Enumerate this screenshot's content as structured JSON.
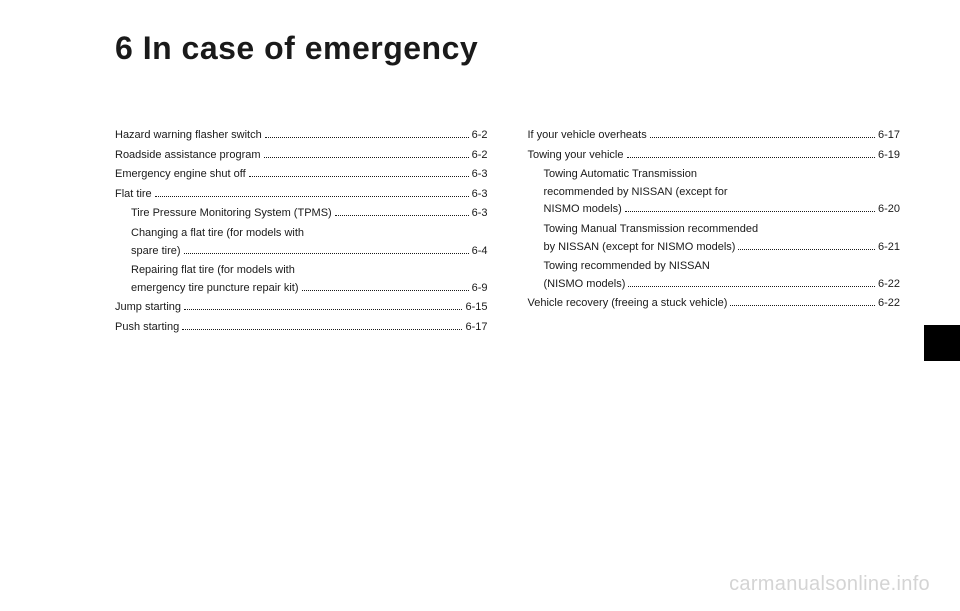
{
  "chapter_title": "6 In case of emergency",
  "left_column": [
    {
      "label": "Hazard warning flasher switch",
      "page": "6-2",
      "indent": false
    },
    {
      "label": "Roadside assistance program",
      "page": "6-2",
      "indent": false
    },
    {
      "label": "Emergency engine shut off",
      "page": "6-3",
      "indent": false
    },
    {
      "label": "Flat tire",
      "page": "6-3",
      "indent": false
    },
    {
      "label": "Tire Pressure Monitoring System (TPMS)",
      "page": "6-3",
      "indent": true
    },
    {
      "pre": "Changing a flat tire (for models with",
      "label": "spare tire)",
      "page": "6-4",
      "indent": true
    },
    {
      "pre": "Repairing flat tire (for models with",
      "label": "emergency tire puncture repair kit)",
      "page": "6-9",
      "indent": true
    },
    {
      "label": "Jump starting",
      "page": "6-15",
      "indent": false
    },
    {
      "label": "Push starting",
      "page": "6-17",
      "indent": false
    }
  ],
  "right_column": [
    {
      "label": "If your vehicle overheats",
      "page": "6-17",
      "indent": false
    },
    {
      "label": "Towing your vehicle",
      "page": "6-19",
      "indent": false
    },
    {
      "pre": "Towing Automatic Transmission",
      "pre2": "recommended by NISSAN (except for",
      "label": "NISMO models)",
      "page": "6-20",
      "indent": true
    },
    {
      "pre": "Towing Manual Transmission recommended",
      "label": "by NISSAN (except for NISMO models)",
      "page": "6-21",
      "indent": true
    },
    {
      "pre": "Towing recommended by NISSAN",
      "label": "(NISMO models)",
      "page": "6-22",
      "indent": true
    },
    {
      "label": "Vehicle recovery (freeing a stuck vehicle)",
      "page": "6-22",
      "indent": false
    }
  ],
  "watermark": "carmanualsonline.info"
}
